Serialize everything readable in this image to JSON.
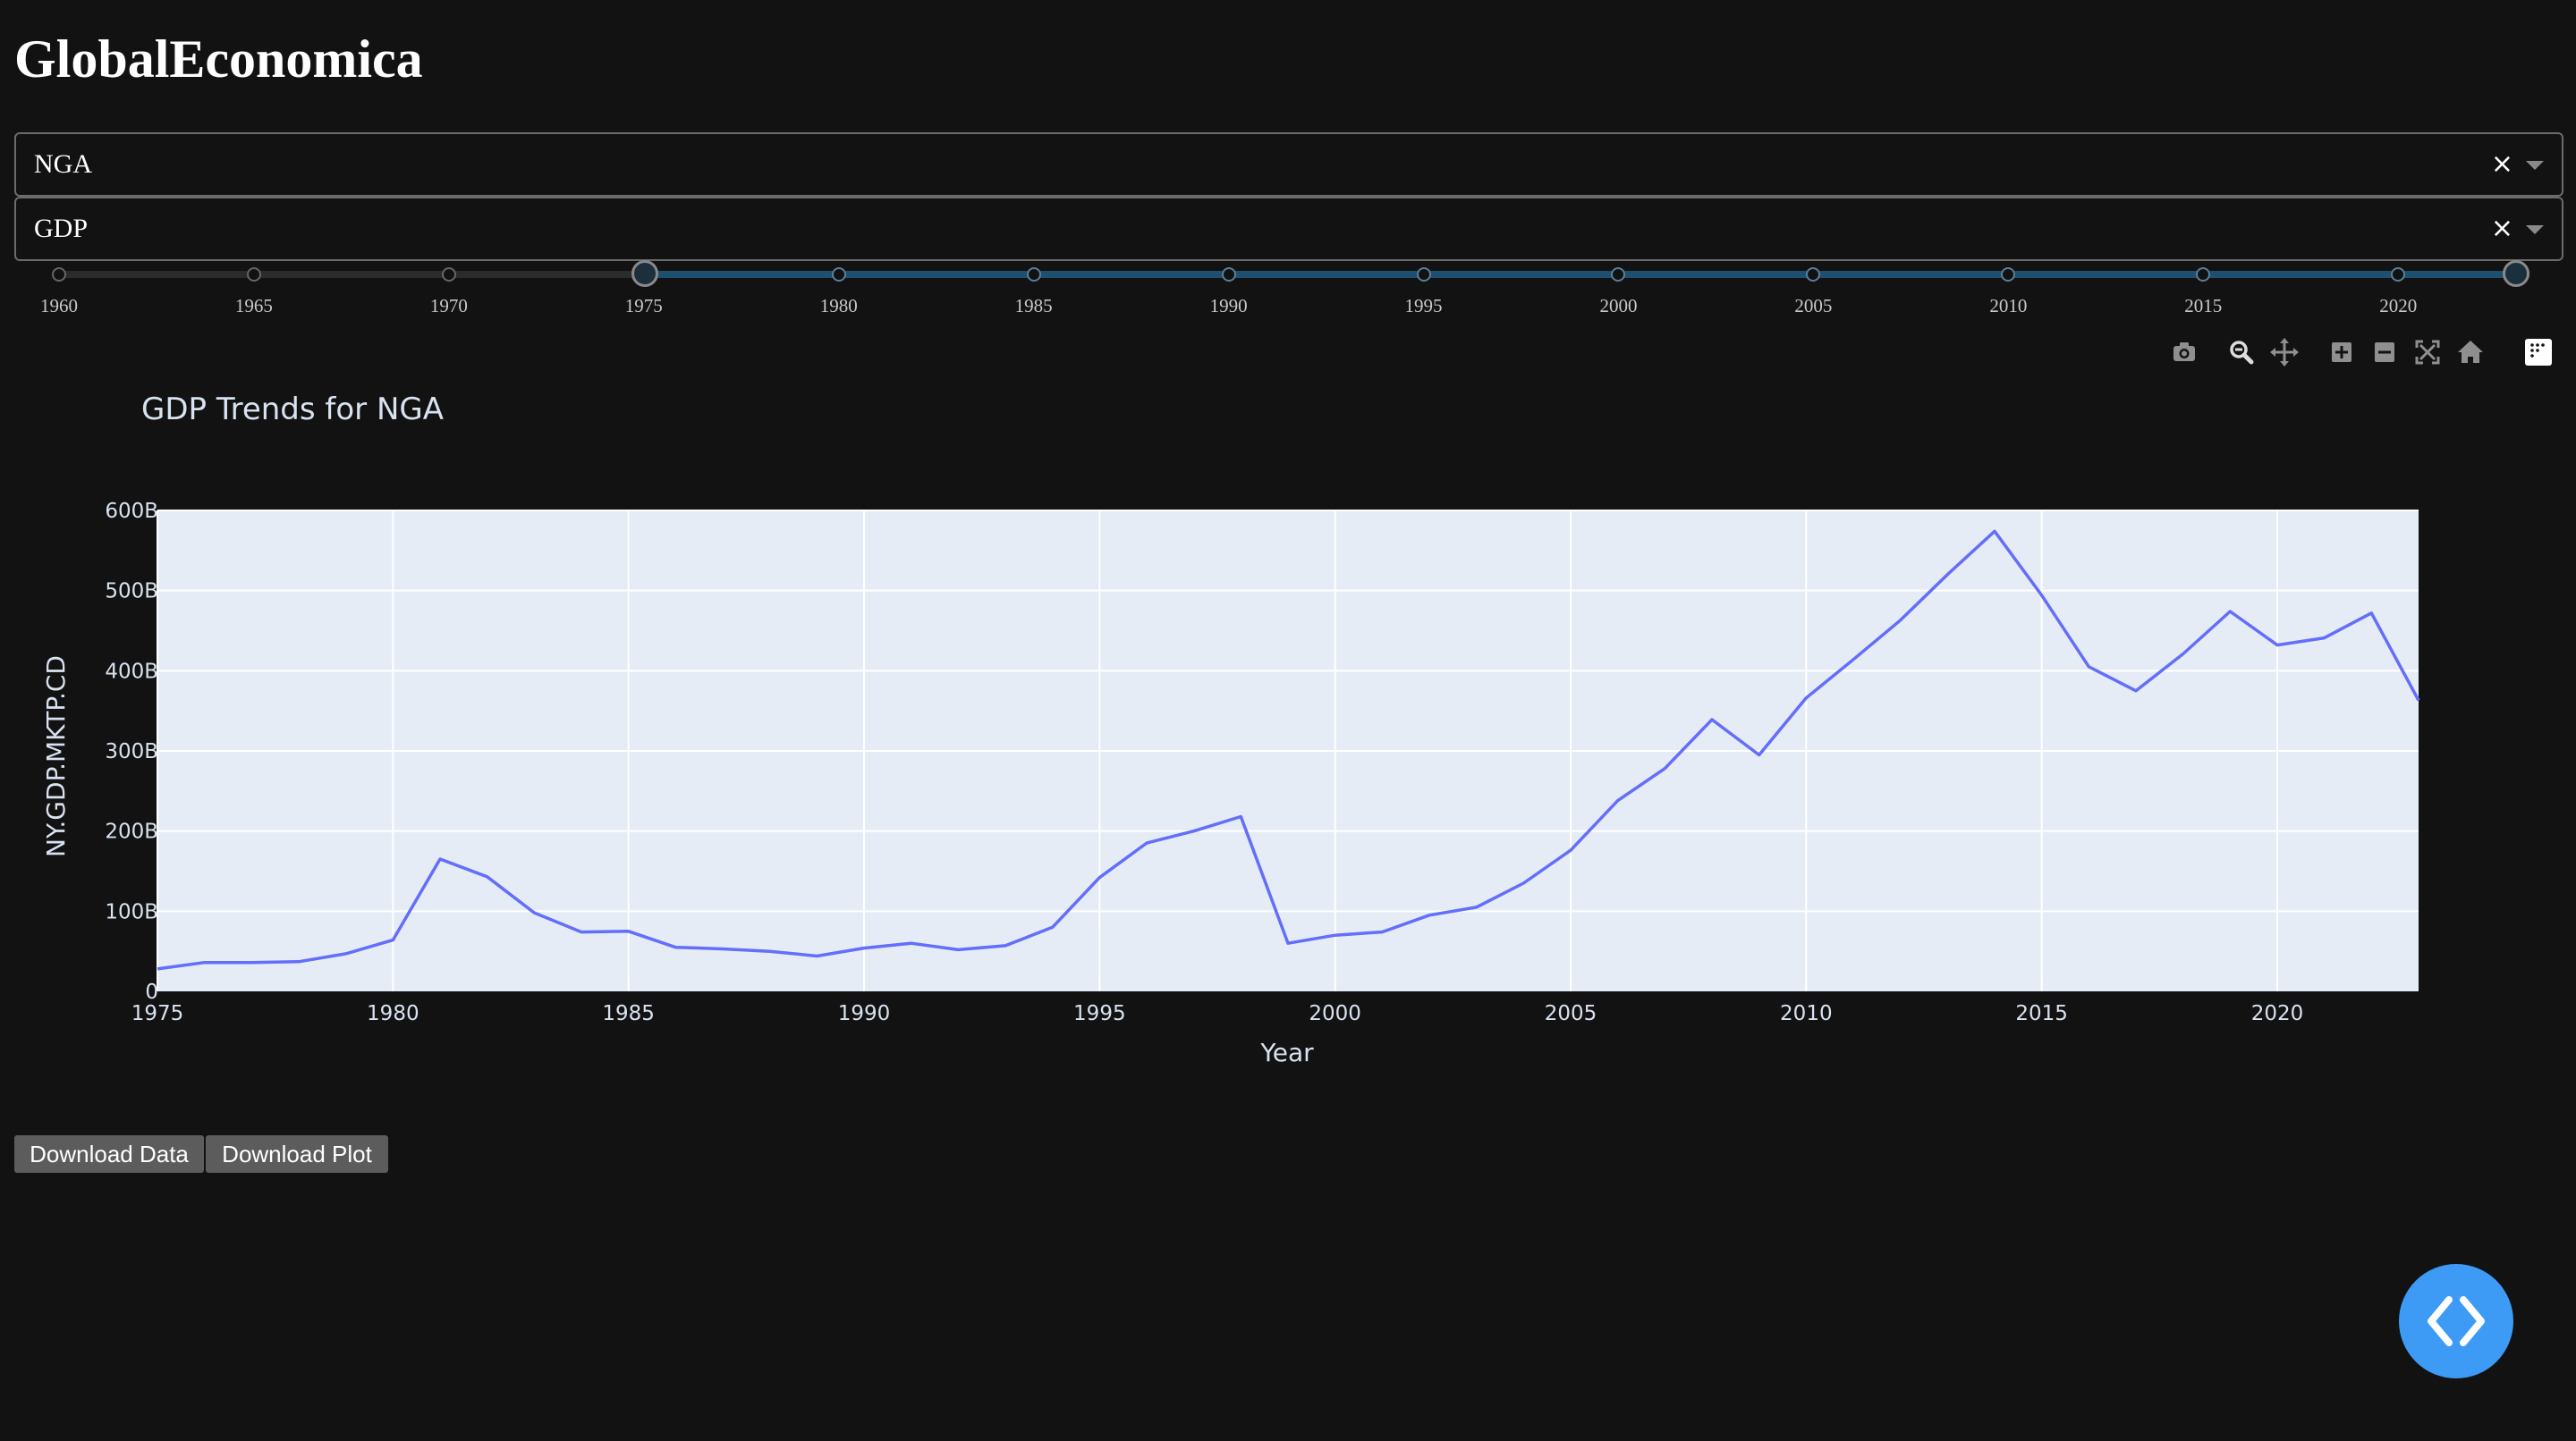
{
  "app": {
    "title": "GlobalEconomica"
  },
  "filters": {
    "country": {
      "value": "NGA",
      "clear_label": "×"
    },
    "indicator": {
      "value": "GDP",
      "clear_label": "×"
    }
  },
  "year_slider": {
    "min": 1960,
    "max": 2023,
    "range_start": 1975,
    "range_end": 2023,
    "marks": [
      "1960",
      "1965",
      "1970",
      "1975",
      "1980",
      "1985",
      "1990",
      "1995",
      "2000",
      "2005",
      "2010",
      "2015",
      "2020"
    ]
  },
  "modebar": {
    "icons": [
      "camera-icon",
      "zoom-icon",
      "pan-icon",
      "zoom-in-icon",
      "zoom-out-icon",
      "autoscale-icon",
      "reset-axes-icon",
      "plotly-logo-icon"
    ]
  },
  "chart_data": {
    "type": "line",
    "title": "GDP Trends for NGA",
    "xlabel": "Year",
    "ylabel": "NY.GDP.MKTP.CD",
    "xlim": [
      1975,
      2023
    ],
    "ylim": [
      0,
      600
    ],
    "x_ticks": [
      "1975",
      "1980",
      "1985",
      "1990",
      "1995",
      "2000",
      "2005",
      "2010",
      "2015",
      "2020"
    ],
    "y_ticks": [
      "0",
      "100B",
      "200B",
      "300B",
      "400B",
      "500B",
      "600B"
    ],
    "grid": true,
    "line_color": "#636efa",
    "plot_bg": "#e5ecf6",
    "series": [
      {
        "x": [
          1975,
          1976,
          1977,
          1978,
          1979,
          1980,
          1981,
          1982,
          1983,
          1984,
          1985,
          1986,
          1987,
          1988,
          1989,
          1990,
          1991,
          1992,
          1993,
          1994,
          1995,
          1996,
          1997,
          1998,
          1999,
          2000,
          2001,
          2002,
          2003,
          2004,
          2005,
          2006,
          2007,
          2008,
          2009,
          2010,
          2011,
          2012,
          2013,
          2014,
          2015,
          2016,
          2017,
          2018,
          2019,
          2020,
          2021,
          2022,
          2023
        ],
        "y": [
          28,
          36,
          36,
          37,
          47,
          64,
          165,
          143,
          98,
          74,
          75,
          55,
          53,
          50,
          44,
          54,
          60,
          52,
          57,
          80,
          142,
          185,
          200,
          218,
          60,
          70,
          74,
          95,
          105,
          135,
          176,
          238,
          278,
          339,
          295,
          366,
          414,
          463,
          520,
          574,
          494,
          405,
          375,
          421,
          474,
          432,
          441,
          472,
          363
        ]
      }
    ]
  },
  "actions": {
    "download_data": "Download Data",
    "download_plot": "Download Plot"
  }
}
